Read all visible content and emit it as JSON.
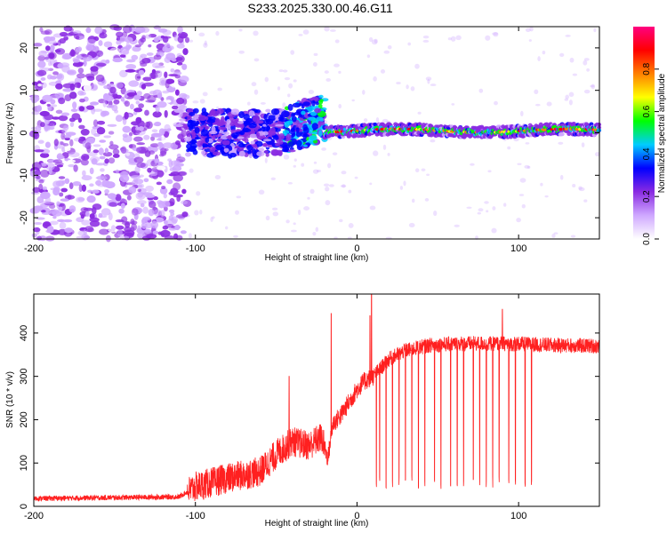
{
  "title": "S233.2025.330.00.46.G11",
  "chart_data": [
    {
      "type": "heatmap",
      "name": "spectrogram",
      "xlabel": "Height of straight line (km)",
      "ylabel": "Frequency (Hz)",
      "xlim": [
        -200,
        150
      ],
      "ylim": [
        -25,
        25
      ],
      "xticks": [
        -200,
        -100,
        0,
        100
      ],
      "yticks": [
        -20,
        -10,
        0,
        10,
        20
      ],
      "xtick_labels": [
        "-200",
        "-100",
        "0",
        "100"
      ],
      "ytick_labels": [
        "-20",
        "-10",
        "0",
        "10",
        "20"
      ],
      "colorbar": {
        "label": "Normalized spectral amplitude",
        "range": [
          0,
          1
        ],
        "ticks": [
          0.0,
          0.2,
          0.4,
          0.6,
          0.8
        ],
        "tick_labels": [
          "0.0",
          "0.2",
          "0.4",
          "0.6",
          "0.8"
        ],
        "colors": [
          "#ffffff",
          "#cfa8ff",
          "#8a2be2",
          "#0000ff",
          "#00ccff",
          "#00ff00",
          "#ffff00",
          "#ff8000",
          "#ff0000",
          "#ff0080"
        ]
      },
      "regions": [
        {
          "x": [
            -200,
            -105
          ],
          "description": "noise, scattered low-to-mid amplitude"
        },
        {
          "x": [
            -105,
            -20
          ],
          "center_freq": 0,
          "spread_hz": 6,
          "amplitude": 0.3
        },
        {
          "x": [
            -20,
            150
          ],
          "center_freq": 0.5,
          "spread_hz": 1.5,
          "amplitude": 0.6
        }
      ]
    },
    {
      "type": "line",
      "name": "snr",
      "xlabel": "Height of straight line (km)",
      "ylabel": "SNR (10 * v/v)",
      "xlim": [
        -200,
        150
      ],
      "ylim": [
        0,
        490
      ],
      "xticks": [
        -200,
        -100,
        0,
        100
      ],
      "yticks": [
        0,
        100,
        200,
        300,
        400
      ],
      "xtick_labels": [
        "-200",
        "-100",
        "0",
        "100"
      ],
      "ytick_labels": [
        "0",
        "100",
        "200",
        "300",
        "400"
      ],
      "color": "#ff2020",
      "trend": [
        [
          -200,
          18
        ],
        [
          -110,
          22
        ],
        [
          -100,
          45
        ],
        [
          -80,
          65
        ],
        [
          -60,
          80
        ],
        [
          -50,
          120
        ],
        [
          -40,
          150
        ],
        [
          -30,
          140
        ],
        [
          -22,
          160
        ],
        [
          -18,
          110
        ],
        [
          -15,
          190
        ],
        [
          -10,
          210
        ],
        [
          -5,
          240
        ],
        [
          0,
          270
        ],
        [
          5,
          290
        ],
        [
          10,
          300
        ],
        [
          15,
          320
        ],
        [
          20,
          340
        ],
        [
          30,
          360
        ],
        [
          45,
          372
        ],
        [
          60,
          375
        ],
        [
          80,
          376
        ],
        [
          100,
          375
        ],
        [
          120,
          372
        ],
        [
          150,
          370
        ]
      ],
      "spikes": [
        {
          "x": -42,
          "y": 300
        },
        {
          "x": -16,
          "y": 445
        },
        {
          "x": 8,
          "y": 440
        },
        {
          "x": 9,
          "y": 495
        },
        {
          "x": 90,
          "y": 455
        }
      ],
      "dropouts": [
        12,
        14,
        18,
        22,
        26,
        30,
        34,
        38,
        42,
        48,
        52,
        58,
        62,
        66,
        72,
        76,
        80,
        84,
        88,
        94,
        98,
        104,
        108
      ]
    }
  ]
}
